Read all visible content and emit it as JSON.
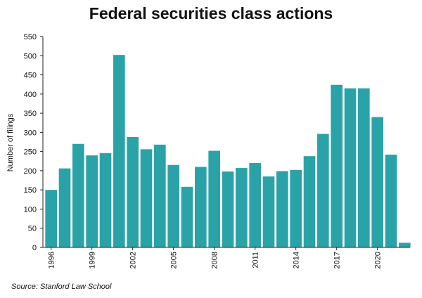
{
  "chart_data": {
    "type": "bar",
    "title": "Federal securities class actions",
    "ylabel": "Number of filings",
    "xlabel": "",
    "ylim": [
      0,
      550
    ],
    "yticks": [
      0,
      50,
      100,
      150,
      200,
      250,
      300,
      350,
      400,
      450,
      500,
      550
    ],
    "xtick_labels": [
      "1996",
      "1999",
      "2002",
      "2005",
      "2008",
      "2011",
      "2014",
      "2017",
      "2020"
    ],
    "categories": [
      "1996",
      "1997",
      "1998",
      "1999",
      "2000",
      "2001",
      "2002",
      "2003",
      "2004",
      "2005",
      "2006",
      "2007",
      "2008",
      "2009",
      "2010",
      "2011",
      "2012",
      "2013",
      "2014",
      "2015",
      "2016",
      "2017",
      "2018",
      "2019",
      "2020",
      "2021",
      "2022"
    ],
    "values": [
      150,
      206,
      270,
      240,
      246,
      502,
      288,
      256,
      268,
      215,
      158,
      210,
      252,
      198,
      207,
      220,
      185,
      199,
      202,
      238,
      296,
      424,
      415,
      415,
      340,
      242,
      12
    ],
    "bar_color": "#2aa3a8",
    "grid": false,
    "legend": "none"
  },
  "source": "Source: Stanford Law School"
}
